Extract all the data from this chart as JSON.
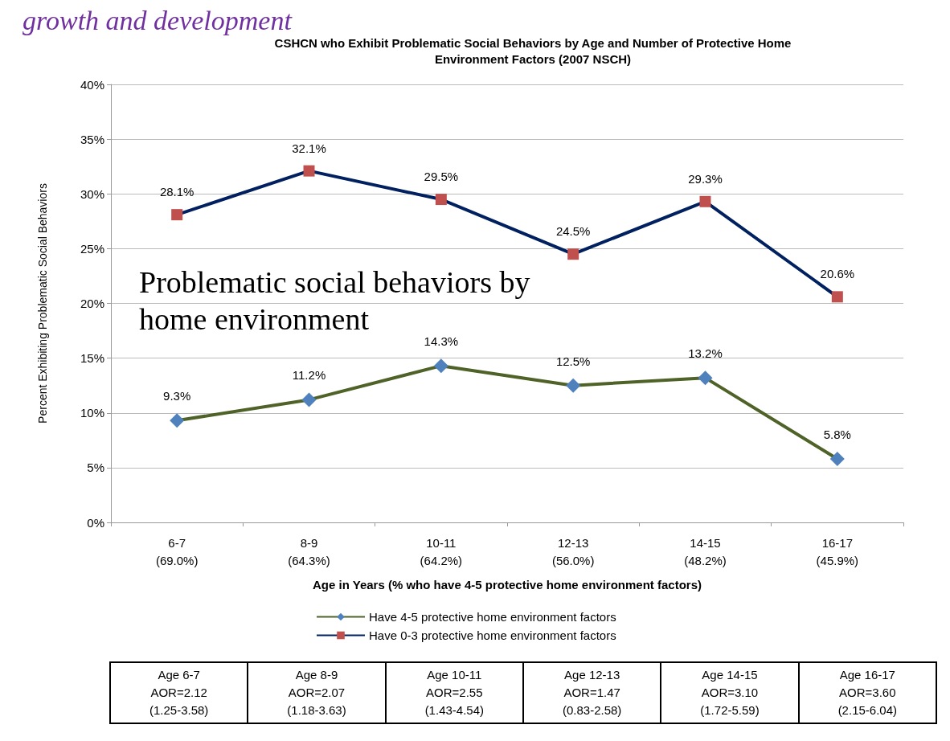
{
  "chart_data": {
    "type": "line",
    "title": "CSHCN who Exhibit Problematic Social Behaviors by Age and Number of Protective Home\nEnvironment Factors (2007 NSCH)",
    "xlabel": "Age in Years (% who have 4-5 protective home environment factors)",
    "ylabel": "Percent Exhibiting Problematic Social Behaviors",
    "categories": [
      "6-7\n(69.0%)",
      "8-9\n(64.3%)",
      "10-11\n(64.2%)",
      "12-13\n(56.0%)",
      "14-15\n(48.2%)",
      "16-17\n(45.9%)"
    ],
    "series": [
      {
        "name": "Have 4-5 protective home environment factors",
        "color": "#4f6228",
        "colors": [
          "#4f81bd",
          "#4f81bd",
          "#4f81bd",
          "#4f81bd",
          "#4f81bd",
          "#4f81bd"
        ],
        "marker": "diamond",
        "values": [
          9.3,
          11.2,
          14.3,
          12.5,
          13.2,
          5.8
        ],
        "value_labels": [
          "9.3%",
          "11.2%",
          "14.3%",
          "12.5%",
          "13.2%",
          "5.8%"
        ]
      },
      {
        "name": "Have 0-3 protective home environment factors",
        "color": "#002060",
        "colors": [
          "#c0504d",
          "#c0504d",
          "#c0504d",
          "#c0504d",
          "#c0504d",
          "#c0504d"
        ],
        "marker": "square",
        "values": [
          28.1,
          32.1,
          29.5,
          24.5,
          29.3,
          20.6
        ],
        "value_labels": [
          "28.1%",
          "32.1%",
          "29.5%",
          "24.5%",
          "29.3%",
          "20.6%"
        ]
      }
    ],
    "ylim": [
      0,
      40
    ],
    "yticks": [
      {
        "value": 0,
        "label": "0%"
      },
      {
        "value": 5,
        "label": "5%"
      },
      {
        "value": 10,
        "label": "10%"
      },
      {
        "value": 15,
        "label": "15%"
      },
      {
        "value": 20,
        "label": "20%"
      },
      {
        "value": 25,
        "label": "25%"
      },
      {
        "value": 30,
        "label": "30%"
      },
      {
        "value": 35,
        "label": "35%"
      },
      {
        "value": 40,
        "label": "40%"
      }
    ],
    "grid": "y",
    "legend": "bottom",
    "line_style": "solid",
    "annotations": [
      "growth and development",
      "Problematic social behaviors by\nhome environment",
      "Age 6-7\nAOR=2.12\n(1.25-3.58)",
      "Age 8-9\nAOR=2.07\n(1.18-3.63)",
      "Age 10-11\nAOR=2.55\n(1.43-4.54)",
      "Age 12-13\nAOR=1.47\n(0.83-2.58)",
      "Age 14-15\nAOR=3.10\n(1.72-5.59)",
      "Age 16-17\nAOR=3.60\n(2.15-6.04)"
    ]
  }
}
